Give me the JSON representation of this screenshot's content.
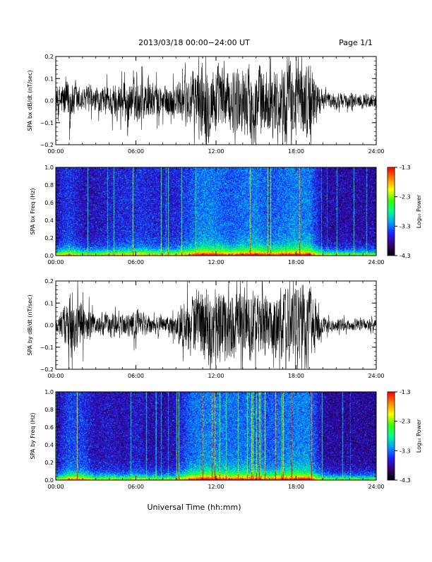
{
  "header": {
    "title": "2013/03/18  00:00−24:00 UT",
    "page_label": "Page 1/1"
  },
  "footer": {
    "xlabel": "Universal Time (hh:mm)"
  },
  "time_ticks": [
    "00:00",
    "06:00",
    "12:00",
    "18:00",
    "24:00"
  ],
  "colorbar": {
    "label": "Log₁₀ Power",
    "tick_labels": [
      "-1.3",
      "-2.3",
      "-3.3",
      "-4.3"
    ],
    "range": [
      -4.3,
      -1.3
    ],
    "colors": [
      "#000000",
      "#3a0070",
      "#2020ff",
      "#00a0ff",
      "#00ff90",
      "#40ff00",
      "#ffff00",
      "#ff8000",
      "#ff0000"
    ]
  },
  "chart_data": [
    {
      "type": "line",
      "ylabel": "SPA bx dB/dt (nT/sec)",
      "xlim": [
        0,
        24
      ],
      "ylim": [
        -0.2,
        0.2
      ],
      "yticks": [
        -0.2,
        -0.1,
        0.0,
        0.1,
        0.2
      ],
      "ytick_labels": [
        "−0.2",
        "−0.1",
        "0.0",
        "0.1",
        "0.2"
      ],
      "series": [
        {
          "color": "#000000",
          "envelope_hours": [
            0,
            1,
            2,
            3,
            4,
            5,
            6,
            7,
            8,
            9,
            10,
            11,
            12,
            13,
            14,
            15,
            16,
            17,
            18,
            19,
            20,
            21,
            22,
            23,
            24
          ],
          "envelope_amplitude": [
            0.07,
            0.12,
            0.06,
            0.06,
            0.08,
            0.1,
            0.11,
            0.1,
            0.08,
            0.09,
            0.14,
            0.2,
            0.19,
            0.15,
            0.18,
            0.2,
            0.15,
            0.18,
            0.2,
            0.2,
            0.04,
            0.04,
            0.04,
            0.04,
            0.04
          ]
        }
      ]
    },
    {
      "type": "heatmap",
      "ylabel": "SPA bx Freq (Hz)",
      "xlim": [
        0,
        24
      ],
      "ylim": [
        0,
        1.0
      ],
      "yticks": [
        0.0,
        0.2,
        0.4,
        0.6,
        0.8,
        1.0
      ],
      "ytick_labels": [
        "0.0",
        "0.2",
        "0.4",
        "0.6",
        "0.8",
        "1.0"
      ],
      "zlim": [
        -4.3,
        -1.3
      ]
    },
    {
      "type": "line",
      "ylabel": "SPA by dB/dt (nT/sec)",
      "xlim": [
        0,
        24
      ],
      "ylim": [
        -0.2,
        0.2
      ],
      "yticks": [
        -0.2,
        -0.1,
        0.0,
        0.1,
        0.2
      ],
      "ytick_labels": [
        "−0.2",
        "−0.1",
        "0.0",
        "0.1",
        "0.2"
      ],
      "series": [
        {
          "color": "#000000",
          "envelope_hours": [
            0,
            1,
            2,
            3,
            4,
            5,
            6,
            7,
            8,
            9,
            10,
            11,
            12,
            13,
            14,
            15,
            16,
            17,
            18,
            19,
            20,
            21,
            22,
            23,
            24
          ],
          "envelope_amplitude": [
            0.04,
            0.14,
            0.12,
            0.05,
            0.07,
            0.05,
            0.08,
            0.05,
            0.04,
            0.06,
            0.16,
            0.2,
            0.2,
            0.18,
            0.18,
            0.18,
            0.15,
            0.18,
            0.2,
            0.2,
            0.04,
            0.03,
            0.03,
            0.03,
            0.03
          ]
        }
      ]
    },
    {
      "type": "heatmap",
      "ylabel": "SPA by Freq (Hz)",
      "xlim": [
        0,
        24
      ],
      "ylim": [
        0,
        1.0
      ],
      "yticks": [
        0.0,
        0.2,
        0.4,
        0.6,
        0.8,
        1.0
      ],
      "ytick_labels": [
        "0.0",
        "0.2",
        "0.4",
        "0.6",
        "0.8",
        "1.0"
      ],
      "zlim": [
        -4.3,
        -1.3
      ]
    }
  ]
}
